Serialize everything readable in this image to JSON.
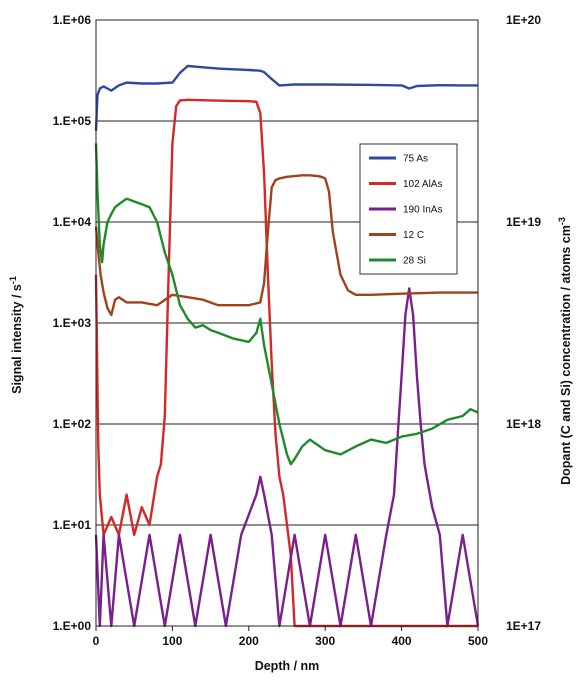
{
  "chart_data": {
    "type": "line",
    "xlabel": "Depth / nm",
    "ylabel_left": "Signal intensity / s",
    "ylabel_left_sup": "-1",
    "ylabel_right": "Dopant (C and Si)  concentration / atoms cm",
    "ylabel_right_sup": "-3",
    "xlim": [
      0,
      500
    ],
    "ylim_left": [
      1,
      1000000
    ],
    "ylim_right": [
      1e+17,
      1e+20
    ],
    "yscale": "log",
    "grid": "horizontal",
    "legend_position": "right-middle",
    "x_ticks": [
      "0",
      "100",
      "200",
      "300",
      "400",
      "500"
    ],
    "y_left_ticks": [
      "1.E+00",
      "1.E+01",
      "1.E+02",
      "1.E+03",
      "1.E+04",
      "1.E+05",
      "1.E+06"
    ],
    "y_right_ticks": [
      "1E+17",
      "1E+18",
      "1E+19",
      "1E+20"
    ],
    "series": [
      {
        "name": "75 As",
        "color": "#2e4a9e",
        "x": [
          0,
          2,
          5,
          10,
          15,
          20,
          30,
          40,
          60,
          80,
          100,
          110,
          120,
          140,
          160,
          180,
          200,
          215,
          220,
          230,
          240,
          260,
          300,
          350,
          400,
          410,
          420,
          450,
          480,
          500
        ],
        "y": [
          80000,
          180000,
          210000,
          220000,
          210000,
          200000,
          225000,
          240000,
          235000,
          235000,
          240000,
          300000,
          350000,
          340000,
          330000,
          325000,
          320000,
          315000,
          305000,
          260000,
          225000,
          230000,
          230000,
          228000,
          225000,
          210000,
          222000,
          226000,
          225000,
          225000
        ]
      },
      {
        "name": "102 AlAs",
        "color": "#d42828",
        "x": [
          0,
          3,
          5,
          10,
          20,
          30,
          40,
          50,
          60,
          70,
          80,
          85,
          90,
          95,
          100,
          105,
          110,
          120,
          150,
          180,
          200,
          210,
          215,
          220,
          225,
          230,
          235,
          240,
          245,
          250,
          255,
          260,
          270,
          280,
          300,
          350,
          400,
          450,
          500
        ],
        "y": [
          3000,
          60,
          20,
          8,
          12,
          8,
          20,
          8,
          15,
          10,
          30,
          40,
          120,
          3000,
          60000,
          140000,
          160000,
          162000,
          160000,
          158000,
          157000,
          155000,
          120000,
          30000,
          3000,
          400,
          80,
          30,
          20,
          10,
          5,
          1,
          1,
          1,
          1,
          1,
          1,
          1,
          1
        ]
      },
      {
        "name": "190 InAs",
        "color": "#7a1f8e",
        "x": [
          0,
          5,
          10,
          20,
          30,
          50,
          70,
          90,
          110,
          130,
          150,
          170,
          190,
          210,
          215,
          220,
          230,
          240,
          260,
          280,
          300,
          320,
          340,
          360,
          380,
          390,
          395,
          400,
          405,
          410,
          415,
          420,
          425,
          430,
          440,
          450,
          460,
          480,
          500
        ],
        "y": [
          8,
          1,
          8,
          1,
          8,
          1,
          8,
          1,
          8,
          1,
          8,
          1,
          8,
          20,
          30,
          20,
          8,
          1,
          8,
          1,
          8,
          1,
          8,
          1,
          8,
          20,
          80,
          300,
          1200,
          2200,
          1200,
          300,
          100,
          40,
          15,
          8,
          1,
          8,
          1
        ]
      },
      {
        "name": "12 C",
        "color": "#a0431a",
        "x": [
          0,
          3,
          6,
          10,
          15,
          20,
          25,
          30,
          40,
          60,
          80,
          100,
          120,
          140,
          160,
          180,
          200,
          215,
          220,
          225,
          230,
          235,
          240,
          250,
          260,
          270,
          280,
          290,
          295,
          300,
          305,
          310,
          320,
          330,
          340,
          360,
          400,
          450,
          500
        ],
        "y": [
          9000,
          5000,
          3000,
          2000,
          1400,
          1200,
          1700,
          1800,
          1600,
          1600,
          1500,
          1900,
          1800,
          1700,
          1500,
          1500,
          1500,
          1600,
          2500,
          8000,
          22000,
          26000,
          27000,
          28000,
          28500,
          29000,
          29000,
          28500,
          28000,
          27000,
          20000,
          8000,
          3000,
          2100,
          1900,
          1900,
          1950,
          2000,
          2000
        ]
      },
      {
        "name": "28 Si",
        "color": "#1f8a2a",
        "x": [
          0,
          2,
          5,
          8,
          10,
          15,
          20,
          25,
          30,
          40,
          60,
          70,
          80,
          90,
          100,
          110,
          120,
          130,
          140,
          150,
          160,
          180,
          200,
          210,
          215,
          220,
          230,
          240,
          250,
          255,
          260,
          270,
          280,
          300,
          320,
          340,
          360,
          380,
          400,
          420,
          440,
          460,
          480,
          490,
          500
        ],
        "y": [
          60000,
          20000,
          6000,
          4000,
          6000,
          10000,
          12000,
          14000,
          15000,
          17000,
          15000,
          14000,
          10000,
          5000,
          3000,
          1500,
          1100,
          900,
          950,
          850,
          800,
          700,
          650,
          800,
          1100,
          600,
          250,
          100,
          50,
          40,
          45,
          60,
          70,
          55,
          50,
          60,
          70,
          65,
          75,
          80,
          90,
          110,
          120,
          140,
          130
        ]
      }
    ]
  }
}
